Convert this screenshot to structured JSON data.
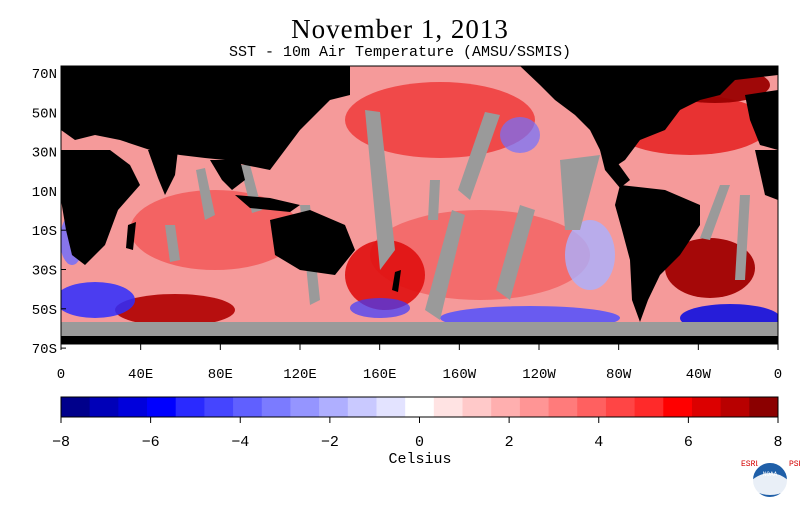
{
  "header": {
    "title": "November 1, 2013",
    "subtitle": "SST - 10m Air Temperature (AMSU/SSMIS)"
  },
  "map": {
    "lat_labels": [
      "70N",
      "50N",
      "30N",
      "10N",
      "10S",
      "30S",
      "50S",
      "70S"
    ],
    "lon_labels": [
      "0",
      "40E",
      "80E",
      "120E",
      "160E",
      "160W",
      "120W",
      "80W",
      "40W",
      "0"
    ],
    "land_color": "#000000",
    "missing_color": "#9a9a9a"
  },
  "colorbar": {
    "tick_labels": [
      "−8",
      "−6",
      "−4",
      "−2",
      "0",
      "2",
      "4",
      "6",
      "8"
    ],
    "units": "Celsius",
    "range": [
      -8,
      8
    ],
    "colors": [
      "#00008b",
      "#0000b8",
      "#0000dc",
      "#0000ff",
      "#2a2aff",
      "#4545ff",
      "#6060ff",
      "#7b7bff",
      "#9595ff",
      "#afafff",
      "#c9c9ff",
      "#e3e3ff",
      "#ffffff",
      "#ffe3e3",
      "#ffc9c9",
      "#ffafaf",
      "#ff9595",
      "#ff7b7b",
      "#ff6060",
      "#ff4545",
      "#ff2a2a",
      "#ff0000",
      "#dc0000",
      "#b80000",
      "#8b0000"
    ]
  },
  "logo": {
    "left_text": "ESRL",
    "right_text": "PSD",
    "badge": "NOAA",
    "accent": "#d40000",
    "blue": "#1f5fa8"
  }
}
